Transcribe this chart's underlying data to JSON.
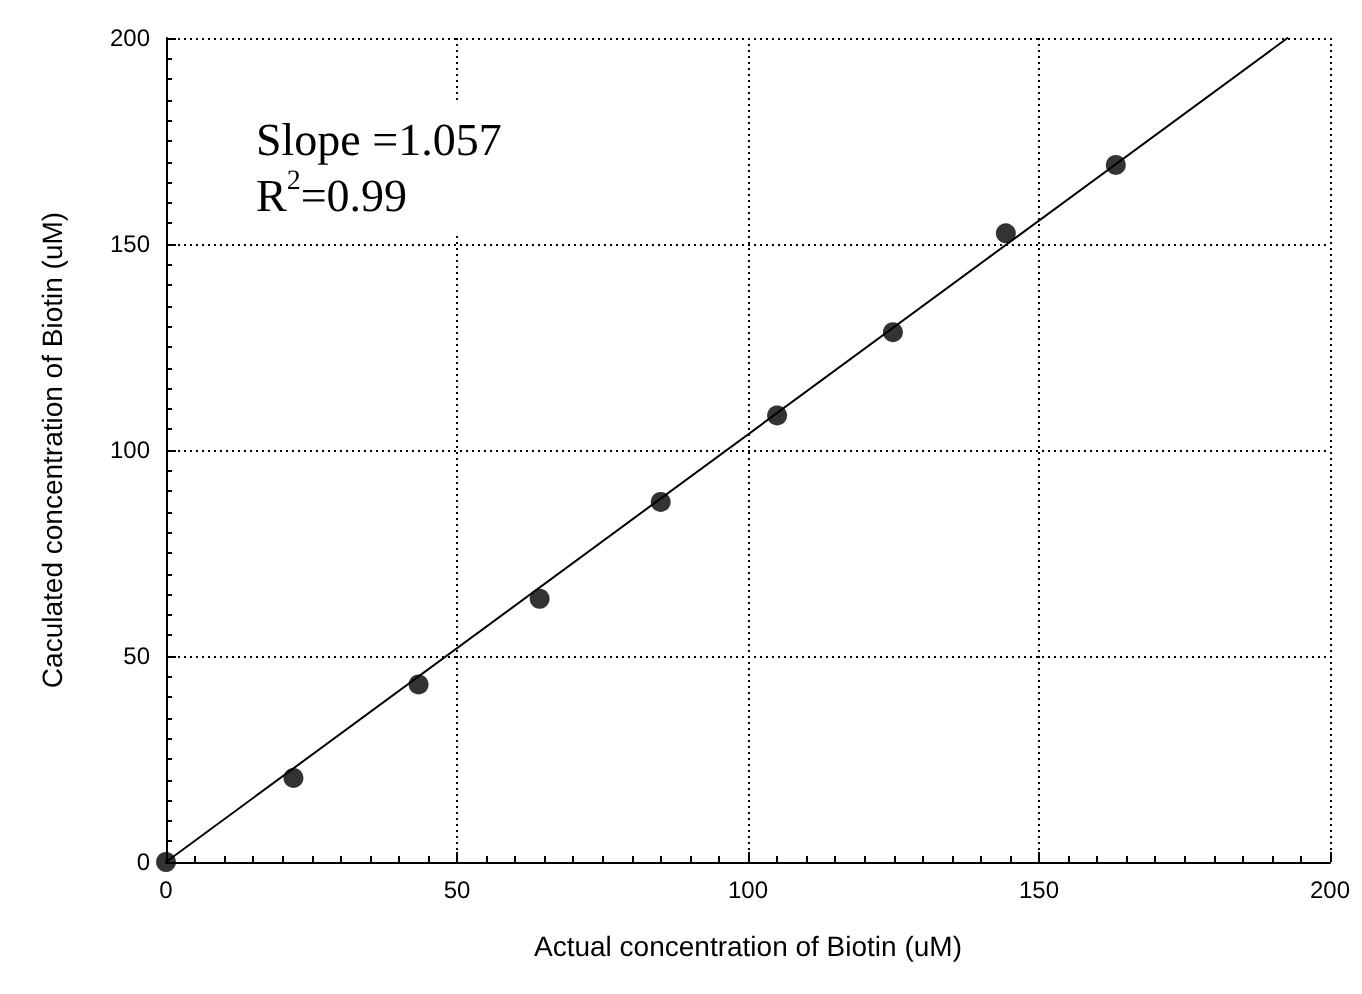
{
  "chart_data": {
    "type": "scatter",
    "xlabel": "Actual concentration of Biotin (uM)",
    "ylabel": "Caculated concentration of Biotin (uM)",
    "annotations": [
      "Slope =1.057",
      "R$^{2}$=0.99"
    ],
    "x": [
      0,
      21.9,
      43.4,
      64.2,
      85,
      105,
      124.9,
      144.3,
      163.2
    ],
    "series": [
      {
        "color": "#000000",
        "marker": "circle",
        "values": [
          0,
          20.4,
          43.1,
          63.9,
          87.4,
          108.4,
          128.6,
          152.6,
          169.2
        ]
      },
      {
        "type": "line",
        "color": "#000000",
        "marker": "none",
        "line_style": "solid",
        "x": [
          0,
          192.7
        ],
        "values": [
          0,
          200
        ]
      }
    ],
    "xlim": [
      0,
      200
    ],
    "xticks": [
      0,
      50,
      100,
      150,
      200
    ],
    "ylim": [
      0,
      200
    ],
    "yticks": [
      0,
      50,
      100,
      150,
      200
    ],
    "grid": true
  }
}
